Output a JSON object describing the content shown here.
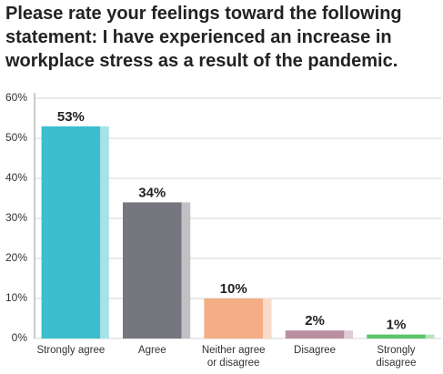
{
  "chart_data": {
    "type": "bar",
    "title": "Please rate your feelings toward the following statement: I have experienced an increase in workplace stress as a result of the pandemic.",
    "categories": [
      "Strongly agree",
      "Agree",
      "Neither agree or disagree",
      "Disagree",
      "Strongly disagree"
    ],
    "values": [
      53,
      34,
      10,
      2,
      1
    ],
    "value_labels": [
      "53%",
      "34%",
      "10%",
      "2%",
      "1%"
    ],
    "colors": [
      "#3bbfcf",
      "#76767e",
      "#f4ad84",
      "#b98ea0",
      "#5cc46a"
    ],
    "ylim": [
      0,
      60
    ],
    "yticks": [
      {
        "value": 0,
        "label": "0%"
      },
      {
        "value": 10,
        "label": "10%"
      },
      {
        "value": 20,
        "label": "20%"
      },
      {
        "value": 30,
        "label": "30%"
      },
      {
        "value": 40,
        "label": "40%"
      },
      {
        "value": 50,
        "label": "50%"
      },
      {
        "value": 60,
        "label": "60%"
      }
    ],
    "grid": true
  }
}
